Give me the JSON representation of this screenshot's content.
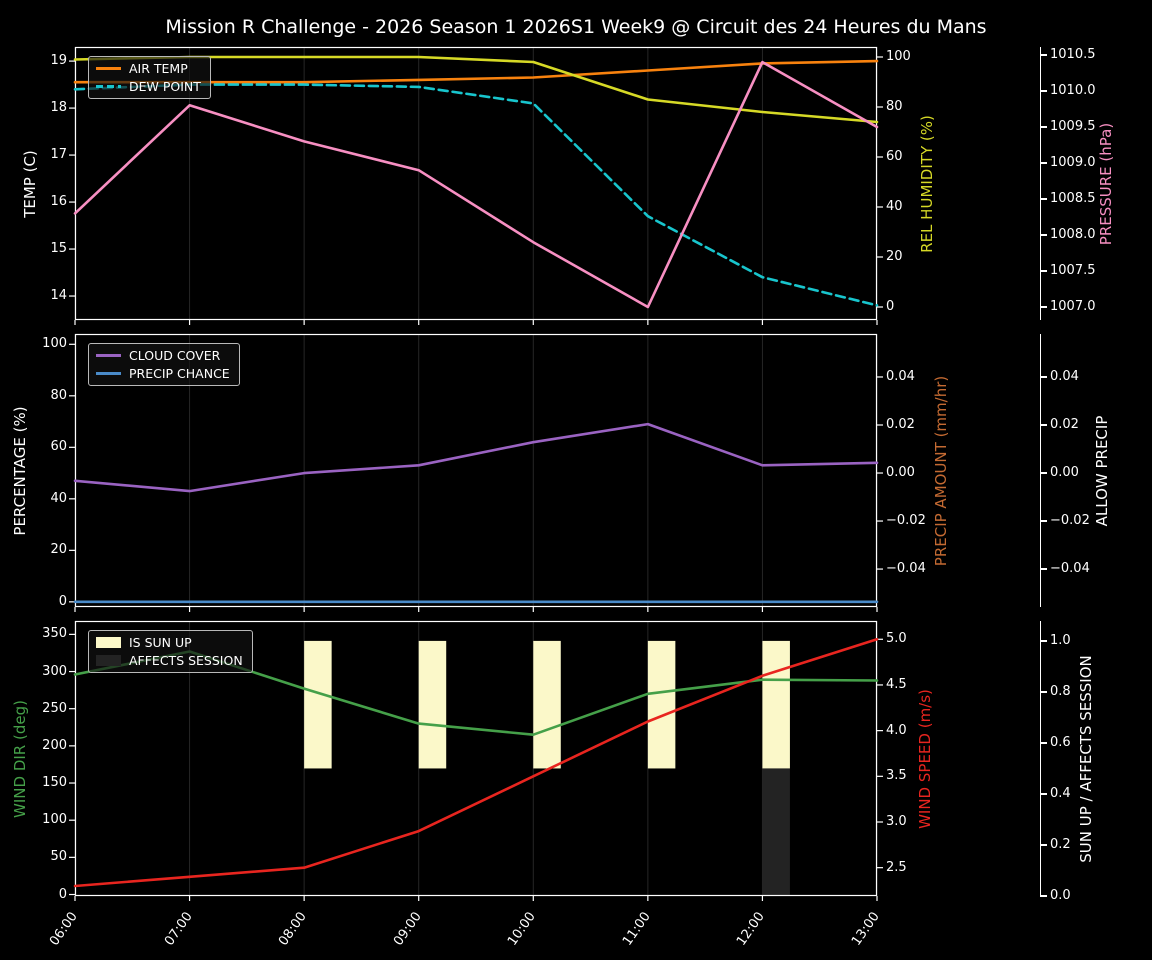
{
  "title": "Mission R Challenge - 2026 Season 1 2026S1 Week9 @ Circuit des 24 Heures du Mans",
  "x_tick_labels": [
    "06:00",
    "07:00",
    "08:00",
    "09:00",
    "10:00",
    "11:00",
    "12:00",
    "13:00"
  ],
  "x_hours": [
    6,
    7,
    8,
    9,
    10,
    11,
    12,
    13
  ],
  "colors": {
    "background": "#000000",
    "text": "#ffffff",
    "grid": "#262626",
    "frame": "#ffffff",
    "air_temp": "#f8820e",
    "dew_point": "#18c5cd",
    "rel_humidity": "#d6d926",
    "pressure": "#f78fc2",
    "cloud_cover": "#9a63c2",
    "precip_chance": "#4a8bc9",
    "precip_amount": "#c46a32",
    "wind_dir": "#45a049",
    "wind_speed": "#e8251f",
    "sun_up": "#fbf8c9",
    "affects_session": "#232323"
  },
  "chart_data": [
    {
      "type": "line",
      "x": [
        "06:00",
        "07:00",
        "08:00",
        "09:00",
        "10:00",
        "11:00",
        "12:00",
        "13:00"
      ],
      "axes": {
        "left": {
          "title": "TEMP (C)",
          "title_color_key": "text",
          "range": [
            13.49,
            19.3
          ],
          "tick_values": [
            14,
            15,
            16,
            17,
            18,
            19
          ],
          "tick_labels": [
            "14",
            "15",
            "16",
            "17",
            "18",
            "19"
          ]
        },
        "right_inner": {
          "title": "REL HUMIDITY (%)",
          "title_color_key": "rel_humidity",
          "range": [
            -5.2,
            104
          ],
          "tick_values": [
            0,
            20,
            40,
            60,
            80,
            100
          ],
          "tick_labels": [
            "0",
            "20",
            "40",
            "60",
            "80",
            "100"
          ]
        },
        "right_outer": {
          "title": "PRESSURE (hPa)",
          "title_color_key": "pressure",
          "range": [
            1006.82,
            1010.61
          ],
          "tick_values": [
            1007,
            1007.5,
            1008,
            1008.5,
            1009,
            1009.5,
            1010,
            1010.5
          ],
          "tick_labels": [
            "1007.0",
            "1007.5",
            "1008.0",
            "1008.5",
            "1009.0",
            "1009.5",
            "1010.0",
            "1010.5"
          ]
        }
      },
      "series": [
        {
          "name": "AIR TEMP",
          "axis": "left",
          "color_key": "air_temp",
          "dashed": false,
          "values": [
            18.55,
            18.55,
            18.55,
            18.6,
            18.65,
            18.8,
            18.95,
            19.0
          ]
        },
        {
          "name": "DEW POINT",
          "axis": "left",
          "color_key": "dew_point",
          "dashed": true,
          "values": [
            18.4,
            18.5,
            18.5,
            18.45,
            18.1,
            15.7,
            14.4,
            13.8
          ]
        },
        {
          "name": "REL HUMIDITY",
          "axis": "right_inner",
          "color_key": "rel_humidity",
          "dashed": false,
          "values": [
            99,
            100,
            100,
            100,
            98,
            83,
            78,
            74
          ]
        },
        {
          "name": "PRESSURE",
          "axis": "right_outer",
          "color_key": "pressure",
          "dashed": false,
          "values": [
            1008.3,
            1009.8,
            1009.3,
            1008.9,
            1007.9,
            1007.0,
            1010.4,
            1009.5
          ]
        }
      ],
      "legend": [
        {
          "label": "AIR TEMP",
          "swatch": "line",
          "color_key": "air_temp",
          "dashed": false
        },
        {
          "label": "DEW POINT",
          "swatch": "line",
          "color_key": "dew_point",
          "dashed": true
        }
      ]
    },
    {
      "type": "line",
      "x": [
        "06:00",
        "07:00",
        "08:00",
        "09:00",
        "10:00",
        "11:00",
        "12:00",
        "13:00"
      ],
      "axes": {
        "left": {
          "title": "PERCENTAGE (%)",
          "title_color_key": "text",
          "range": [
            -2,
            104
          ],
          "tick_values": [
            0,
            20,
            40,
            60,
            80,
            100
          ],
          "tick_labels": [
            "0",
            "20",
            "40",
            "60",
            "80",
            "100"
          ]
        },
        "right_inner": {
          "title": "PRECIP AMOUNT (mm/hr)",
          "title_color_key": "precip_amount",
          "range": [
            -0.0558,
            0.0579
          ],
          "tick_values": [
            -0.04,
            -0.02,
            0,
            0.02,
            0.04
          ],
          "tick_labels": [
            "−0.04",
            "−0.02",
            "0.00",
            "0.02",
            "0.04"
          ]
        },
        "right_outer": {
          "title": "ALLOW PRECIP",
          "title_color_key": "text",
          "range": [
            -0.0558,
            0.0579
          ],
          "tick_values": [
            -0.04,
            -0.02,
            0,
            0.02,
            0.04
          ],
          "tick_labels": [
            "−0.04",
            "−0.02",
            "0.00",
            "0.02",
            "0.04"
          ]
        }
      },
      "series": [
        {
          "name": "CLOUD COVER",
          "axis": "left",
          "color_key": "cloud_cover",
          "dashed": false,
          "values": [
            47,
            43,
            50,
            53,
            62,
            69,
            53,
            54
          ]
        },
        {
          "name": "PRECIP CHANCE",
          "axis": "left",
          "color_key": "precip_chance",
          "dashed": false,
          "values": [
            0,
            0,
            0,
            0,
            0,
            0,
            0,
            0
          ]
        }
      ],
      "legend": [
        {
          "label": "CLOUD COVER",
          "swatch": "line",
          "color_key": "cloud_cover",
          "dashed": false
        },
        {
          "label": "PRECIP CHANCE",
          "swatch": "line",
          "color_key": "precip_chance",
          "dashed": false
        }
      ]
    },
    {
      "type": "line+bar",
      "x": [
        "06:00",
        "07:00",
        "08:00",
        "09:00",
        "10:00",
        "11:00",
        "12:00",
        "13:00"
      ],
      "axes": {
        "left": {
          "title": "WIND DIR (deg)",
          "title_color_key": "wind_dir",
          "range": [
            -2,
            368
          ],
          "tick_values": [
            0,
            50,
            100,
            150,
            200,
            250,
            300,
            350
          ],
          "tick_labels": [
            "0",
            "50",
            "100",
            "150",
            "200",
            "250",
            "300",
            "350"
          ]
        },
        "right_inner": {
          "title": "WIND SPEED (m/s)",
          "title_color_key": "wind_speed",
          "range": [
            2.19,
            5.2
          ],
          "tick_values": [
            2.5,
            3,
            3.5,
            4,
            4.5,
            5
          ],
          "tick_labels": [
            "2.5",
            "3.0",
            "3.5",
            "4.0",
            "4.5",
            "5.0"
          ]
        },
        "right_outer": {
          "title": "SUN UP / AFFECTS SESSION",
          "title_color_key": "text",
          "range": [
            0,
            1.078
          ],
          "tick_values": [
            0,
            0.2,
            0.4,
            0.6,
            0.8,
            1
          ],
          "tick_labels": [
            "0.0",
            "0.2",
            "0.4",
            "0.6",
            "0.8",
            "1.0"
          ]
        }
      },
      "series": [
        {
          "name": "WIND DIR",
          "axis": "left",
          "color_key": "wind_dir",
          "dashed": false,
          "values": [
            296,
            327,
            277,
            230,
            215,
            270,
            289,
            288
          ]
        },
        {
          "name": "WIND SPEED",
          "axis": "right_inner",
          "color_key": "wind_speed",
          "dashed": false,
          "values": [
            2.3,
            2.4,
            2.5,
            2.9,
            3.5,
            4.1,
            4.6,
            5.0
          ]
        }
      ],
      "bars": [
        {
          "name": "IS SUN UP",
          "axis": "right_outer",
          "color_key": "sun_up",
          "hours": [
            8,
            9,
            10,
            11,
            12
          ],
          "y_from": 0.5,
          "y_to": 1.0,
          "width_hours": 0.24
        },
        {
          "name": "AFFECTS SESSION",
          "axis": "right_outer",
          "color_key": "affects_session",
          "hours": [
            12
          ],
          "y_from": 0.0,
          "y_to": 0.5,
          "width_hours": 0.24
        }
      ],
      "legend": [
        {
          "label": "IS SUN UP",
          "swatch": "rect",
          "color_key": "sun_up"
        },
        {
          "label": "AFFECTS SESSION",
          "swatch": "rect",
          "color_key": "affects_session"
        }
      ]
    }
  ]
}
